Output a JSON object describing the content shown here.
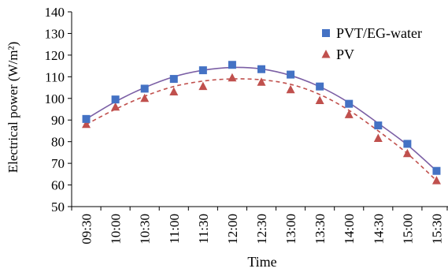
{
  "chart_data": {
    "type": "line",
    "title": "",
    "xlabel": "Time",
    "ylabel": "Electrical power (W/m²)",
    "ylim": [
      50,
      140
    ],
    "yticks": [
      50,
      60,
      70,
      80,
      90,
      100,
      110,
      120,
      130,
      140
    ],
    "categories": [
      "09:30",
      "10:00",
      "10:30",
      "11:00",
      "11:30",
      "12:00",
      "12:30",
      "13:00",
      "13:30",
      "14:00",
      "14:30",
      "15:00",
      "15:30"
    ],
    "grid": false,
    "legend_position": "top-right",
    "series": [
      {
        "name": "PVT/EG-water",
        "marker": "square",
        "marker_color": "#4472C4",
        "line_color": "#7B5FA5",
        "line_style": "solid",
        "values": [
          90.5,
          99.5,
          104.5,
          109,
          113,
          115.5,
          113.5,
          111,
          105.5,
          97.5,
          87.5,
          79,
          66.5
        ],
        "fit": [
          90.5,
          98.5,
          105.0,
          110.0,
          113.0,
          114.3,
          113.6,
          110.6,
          105.4,
          98.0,
          88.5,
          78.5,
          66.5
        ]
      },
      {
        "name": "PV",
        "marker": "triangle",
        "marker_color": "#C0504D",
        "line_color": "#C0504D",
        "line_style": "dashed",
        "values": [
          88,
          96,
          100,
          103,
          105.5,
          109.5,
          107.5,
          104,
          99,
          92.5,
          81.5,
          74.5,
          62
        ],
        "fit": [
          88.0,
          95.0,
          101.0,
          105.5,
          108.0,
          109.0,
          108.6,
          106.5,
          101.8,
          94.5,
          85.0,
          74.5,
          62.0
        ]
      }
    ]
  }
}
